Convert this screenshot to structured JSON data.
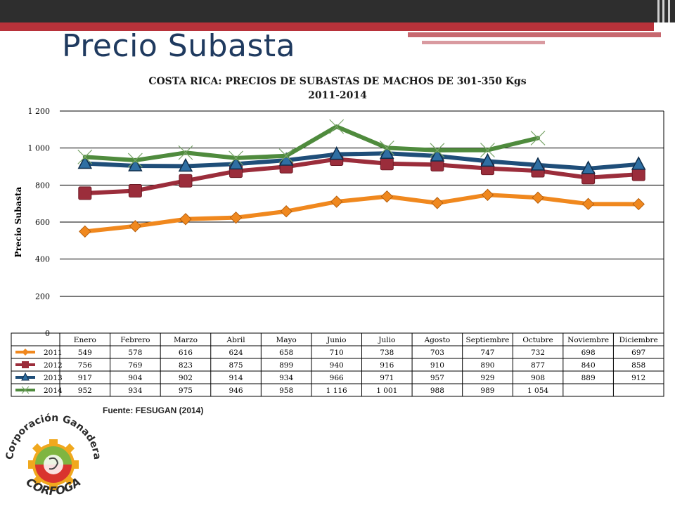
{
  "slide": {
    "title": "Precio Subasta",
    "source": "Fuente: FESUGAN (2014)"
  },
  "logo": {
    "text_top": "Corporación Ganadera",
    "text_bottom": "CORFOGA"
  },
  "colors": {
    "s2011": "#f0881e",
    "s2012": "#9b2d3b",
    "s2013": "#1f4e79",
    "s2014": "#4f8b3d",
    "grid": "#000000"
  },
  "chart_data": {
    "type": "line",
    "title": "COSTA RICA: PRECIOS DE SUBASTAS DE MACHOS DE 301-350 Kgs",
    "subtitle": "2011-2014",
    "ylabel": "Precio Subasta",
    "ylim": [
      0,
      1200
    ],
    "yticks": [
      0,
      200,
      400,
      600,
      800,
      1000,
      1200
    ],
    "ytick_labels": [
      "0",
      "200",
      "400",
      "600",
      "800",
      "1 000",
      "1 200"
    ],
    "grid": true,
    "legend": "data-table",
    "categories": [
      "Enero",
      "Febrero",
      "Marzo",
      "Abril",
      "Mayo",
      "Junio",
      "Julio",
      "Agosto",
      "Septiembre",
      "Octubre",
      "Noviembre",
      "Diciembre"
    ],
    "series": [
      {
        "name": "2011",
        "color": "#f0881e",
        "marker": "diamond",
        "values": [
          549,
          578,
          616,
          624,
          658,
          710,
          738,
          703,
          747,
          732,
          698,
          697
        ],
        "labels": [
          "549",
          "578",
          "616",
          "624",
          "658",
          "710",
          "738",
          "703",
          "747",
          "732",
          "698",
          "697"
        ]
      },
      {
        "name": "2012",
        "color": "#9b2d3b",
        "marker": "square",
        "values": [
          756,
          769,
          823,
          875,
          899,
          940,
          916,
          910,
          890,
          877,
          840,
          858
        ],
        "labels": [
          "756",
          "769",
          "823",
          "875",
          "899",
          "940",
          "916",
          "910",
          "890",
          "877",
          "840",
          "858"
        ]
      },
      {
        "name": "2013",
        "color": "#1f4e79",
        "marker": "triangle",
        "values": [
          917,
          904,
          902,
          914,
          934,
          966,
          971,
          957,
          929,
          908,
          889,
          912
        ],
        "labels": [
          "917",
          "904",
          "902",
          "914",
          "934",
          "966",
          "971",
          "957",
          "929",
          "908",
          "889",
          "912"
        ]
      },
      {
        "name": "2014",
        "color": "#4f8b3d",
        "marker": "x",
        "values": [
          952,
          934,
          975,
          946,
          958,
          1116,
          1001,
          988,
          989,
          1054,
          null,
          null
        ],
        "labels": [
          "952",
          "934",
          "975",
          "946",
          "958",
          "1 116",
          "1 001",
          "988",
          "989",
          "1 054",
          "",
          ""
        ]
      }
    ]
  }
}
